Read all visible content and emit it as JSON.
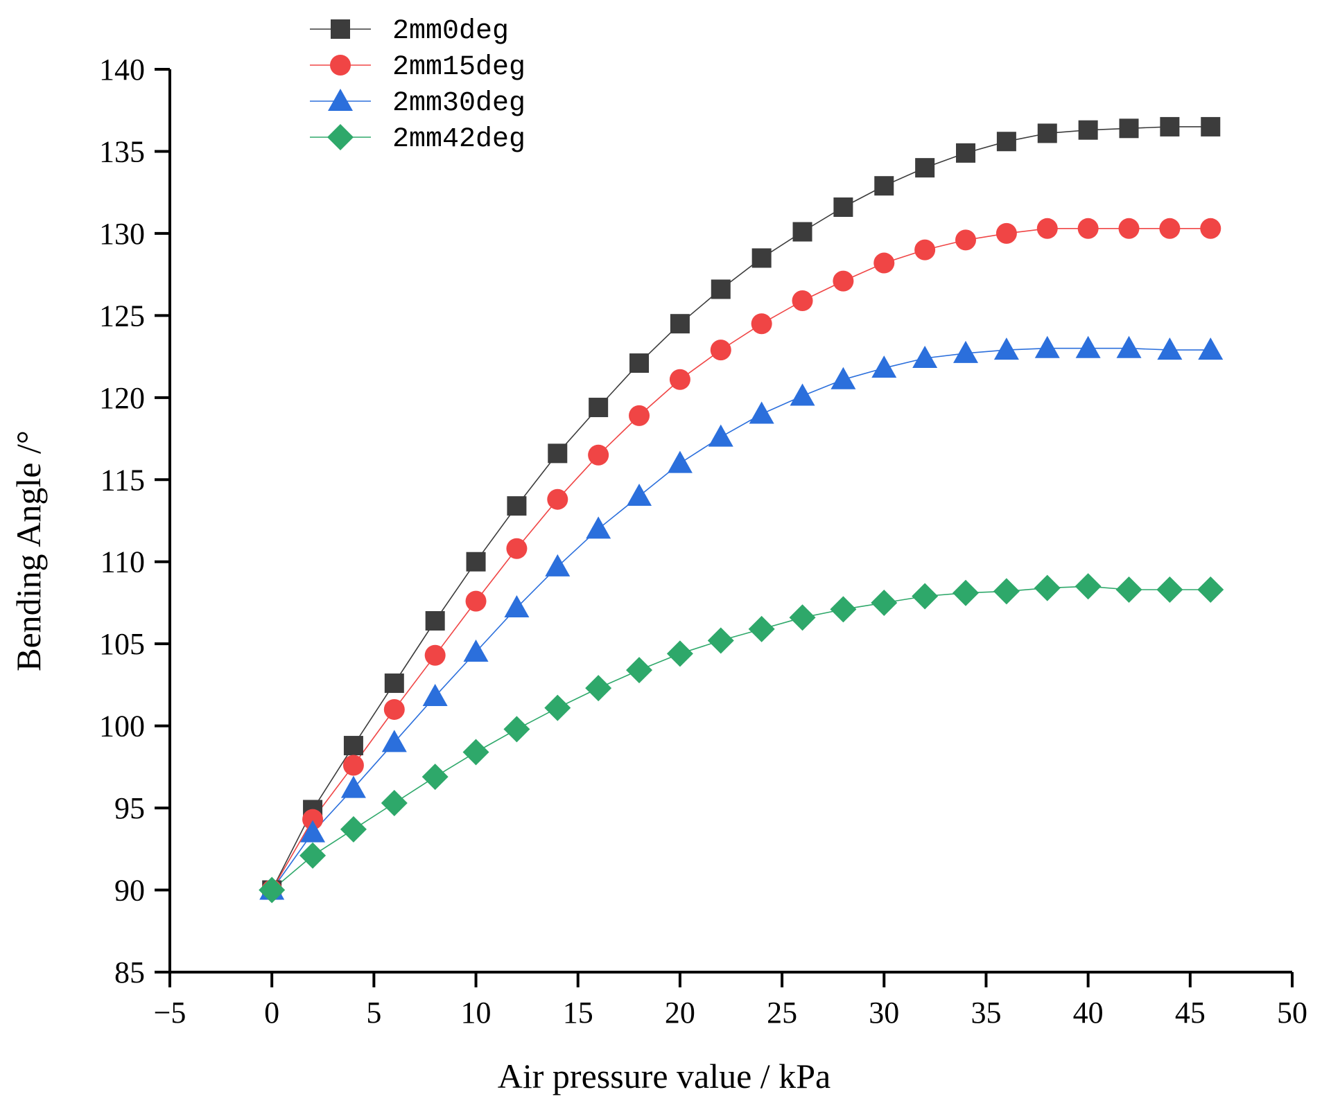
{
  "chart_data": {
    "type": "line",
    "title": "",
    "xlabel": "Air pressure value / kPa",
    "ylabel": "Bending Angle /°",
    "xlim": [
      -5,
      50
    ],
    "ylim": [
      85,
      140
    ],
    "xticks": [
      -5,
      0,
      5,
      10,
      15,
      20,
      25,
      30,
      35,
      40,
      45,
      50
    ],
    "yticks": [
      85,
      90,
      95,
      100,
      105,
      110,
      115,
      120,
      125,
      130,
      135,
      140
    ],
    "xtick_labels": [
      "−5",
      "0",
      "5",
      "10",
      "15",
      "20",
      "25",
      "30",
      "35",
      "40",
      "45",
      "50"
    ],
    "ytick_labels": [
      "85",
      "90",
      "95",
      "100",
      "105",
      "110",
      "115",
      "120",
      "125",
      "130",
      "135",
      "140"
    ],
    "grid": false,
    "legend_position": "top-left",
    "x": [
      0,
      2,
      4,
      6,
      8,
      10,
      12,
      14,
      16,
      18,
      20,
      22,
      24,
      26,
      28,
      30,
      32,
      34,
      36,
      38,
      40,
      42,
      44,
      46
    ],
    "series": [
      {
        "name": "2mm0deg",
        "marker": "square",
        "color": "#3c3c3c",
        "values": [
          90.0,
          94.9,
          98.8,
          102.6,
          106.4,
          110.0,
          113.4,
          116.6,
          119.4,
          122.1,
          124.5,
          126.6,
          128.5,
          130.1,
          131.6,
          132.9,
          134.0,
          134.9,
          135.6,
          136.1,
          136.3,
          136.4,
          136.5,
          136.5
        ]
      },
      {
        "name": "2mm15deg",
        "marker": "circle",
        "color": "#f04545",
        "values": [
          90.0,
          94.3,
          97.6,
          101.0,
          104.3,
          107.6,
          110.8,
          113.8,
          116.5,
          118.9,
          121.1,
          122.9,
          124.5,
          125.9,
          127.1,
          128.2,
          129.0,
          129.6,
          130.0,
          130.3,
          130.3,
          130.3,
          130.3,
          130.3
        ]
      },
      {
        "name": "2mm30deg",
        "marker": "triangle",
        "color": "#2b6fdc",
        "values": [
          90.0,
          93.5,
          96.2,
          99.0,
          101.8,
          104.5,
          107.2,
          109.7,
          112.0,
          114.0,
          116.0,
          117.6,
          119.0,
          120.1,
          121.1,
          121.8,
          122.4,
          122.7,
          122.9,
          123.0,
          123.0,
          123.0,
          122.9,
          122.9
        ]
      },
      {
        "name": "2mm42deg",
        "marker": "diamond",
        "color": "#2ea86a",
        "values": [
          90.0,
          92.1,
          93.7,
          95.3,
          96.9,
          98.4,
          99.8,
          101.1,
          102.3,
          103.4,
          104.4,
          105.2,
          105.9,
          106.6,
          107.1,
          107.5,
          107.9,
          108.1,
          108.2,
          108.4,
          108.5,
          108.3,
          108.3,
          108.3
        ]
      }
    ]
  }
}
